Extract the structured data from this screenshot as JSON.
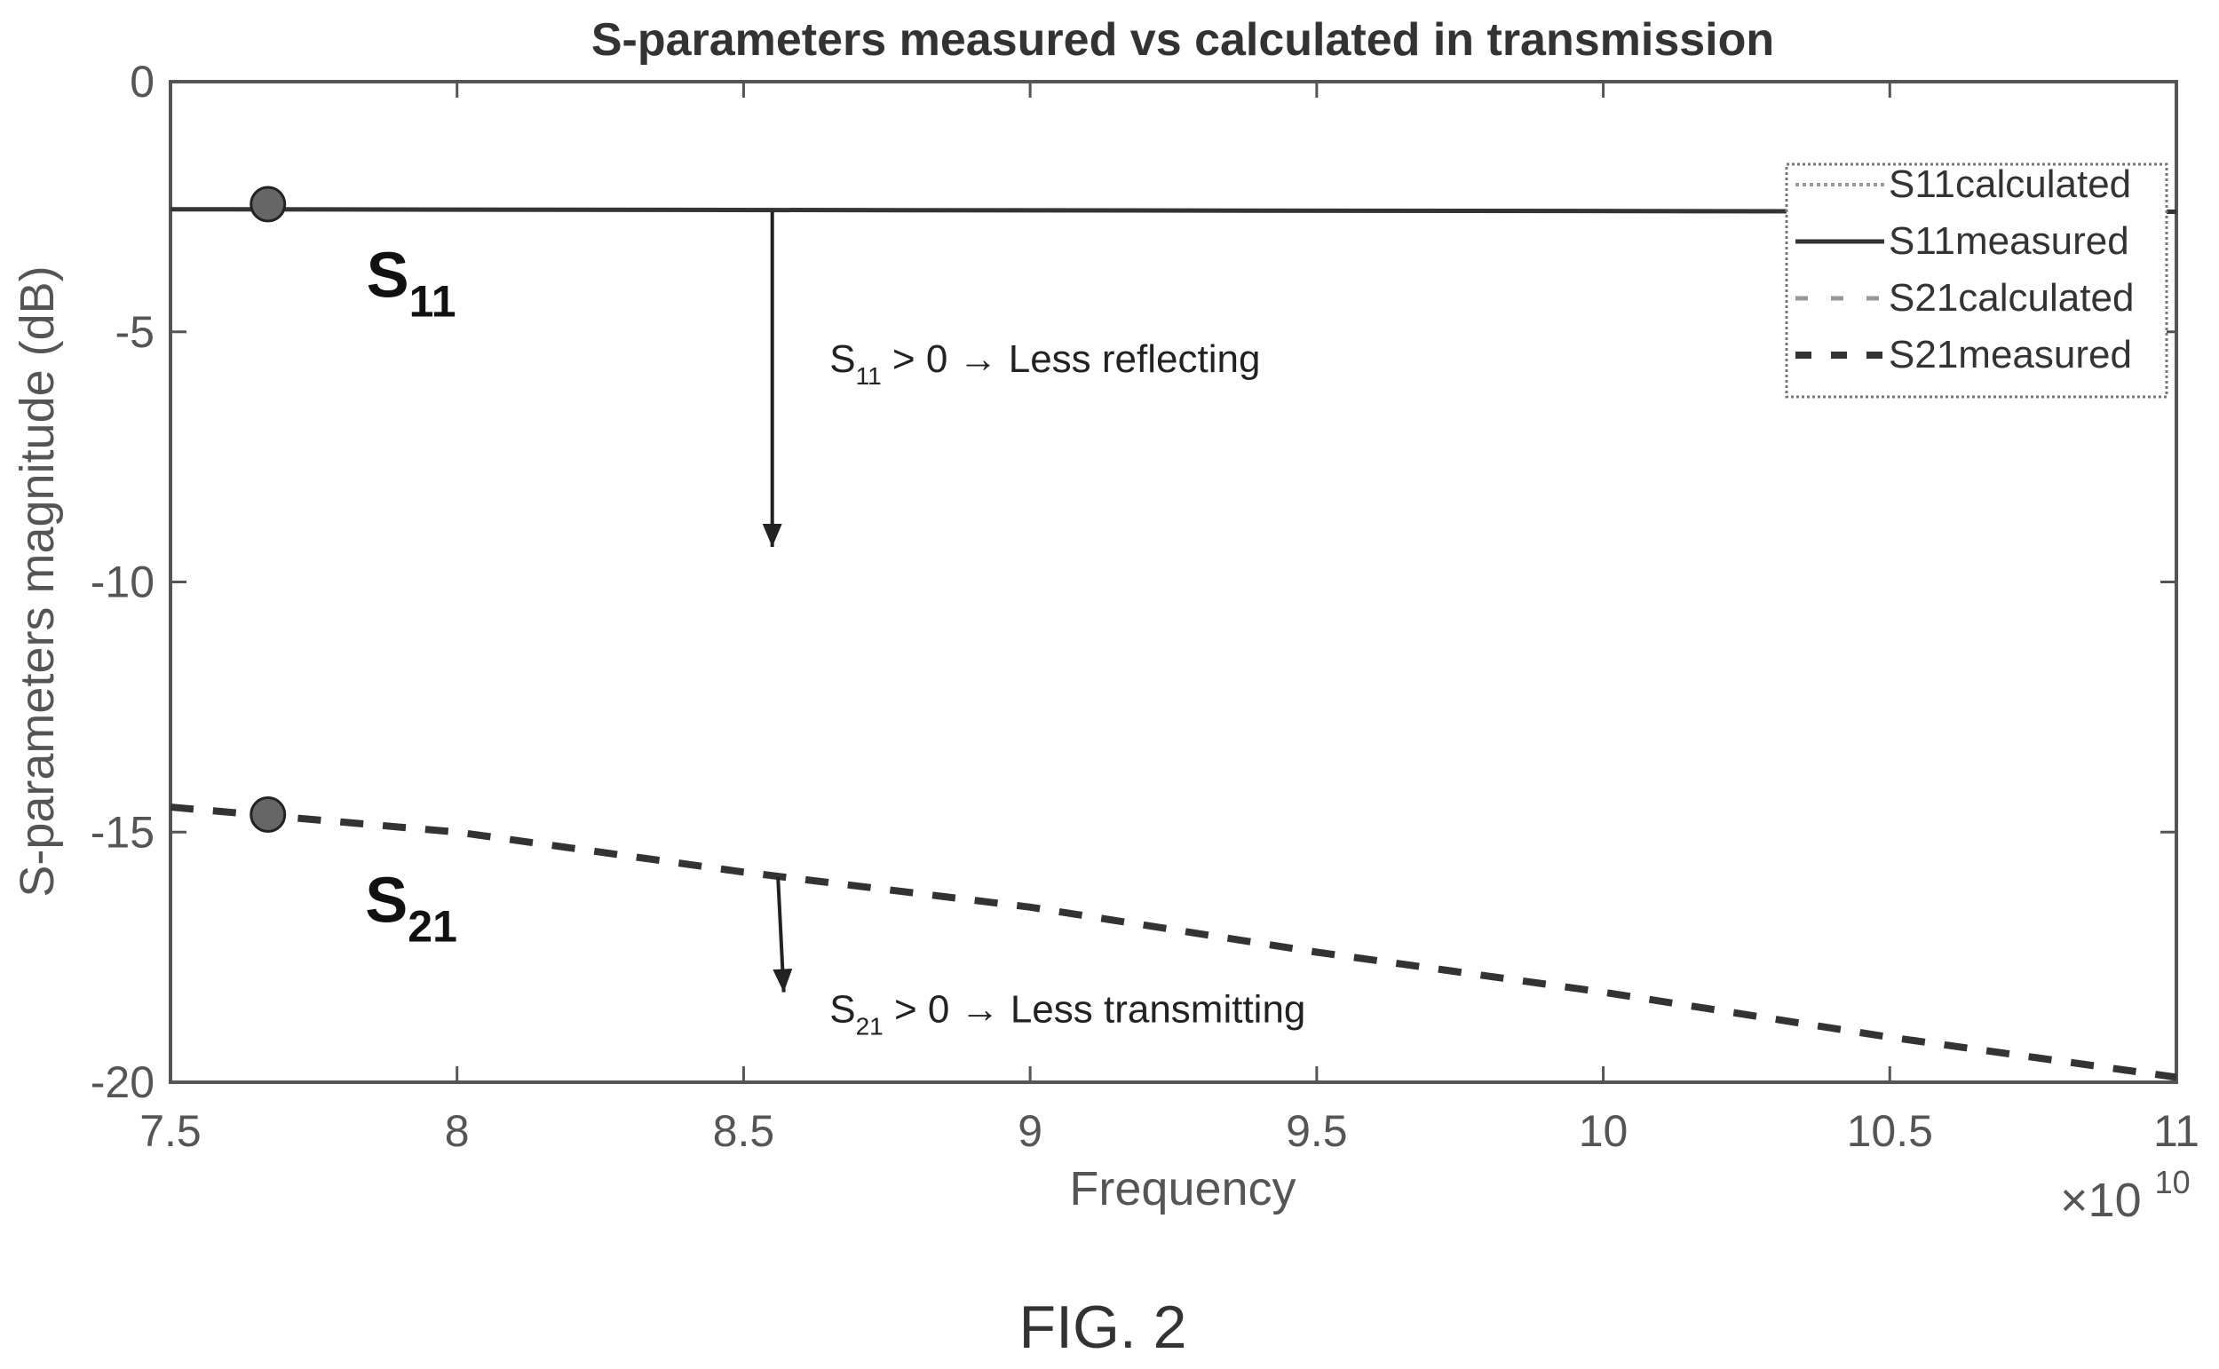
{
  "chart_data": {
    "type": "line",
    "title": "S-parameters measured vs calculated in transmission",
    "xlabel": "Frequency",
    "ylabel": "S-parameters magnitude (dB)",
    "x_exponent_label": "×10",
    "x_exponent_power": "10",
    "xlim": [
      75000000000.0,
      110000000000.0
    ],
    "ylim": [
      -20,
      0
    ],
    "x_ticks": [
      75000000000.0,
      80000000000.0,
      85000000000.0,
      90000000000.0,
      95000000000.0,
      100000000000.0,
      105000000000.0,
      110000000000.0
    ],
    "x_tick_labels": [
      "7.5",
      "8",
      "8.5",
      "9",
      "9.5",
      "10",
      "10.5",
      "11"
    ],
    "y_ticks": [
      0,
      -5,
      -10,
      -15,
      -20
    ],
    "y_tick_labels": [
      "0",
      "-5",
      "-10",
      "-15",
      "-20"
    ],
    "grid": false,
    "legend_position": "top-right",
    "series": [
      {
        "name": "S11calculated",
        "style": "dotted",
        "color": "#999999",
        "x": [
          75000000000.0,
          110000000000.0
        ],
        "y": [
          -2.55,
          -2.6
        ]
      },
      {
        "name": "S11measured",
        "style": "solid",
        "color": "#333333",
        "x": [
          75000000000.0,
          110000000000.0
        ],
        "y": [
          -2.55,
          -2.6
        ]
      },
      {
        "name": "S21calculated",
        "style": "dash-light",
        "color": "#999999",
        "x": [
          75000000000.0,
          80000000000.0,
          85000000000.0,
          90000000000.0,
          95000000000.0,
          100000000000.0,
          105000000000.0,
          110000000000.0
        ],
        "y": [
          -14.5,
          -15.0,
          -15.8,
          -16.5,
          -17.4,
          -18.2,
          -19.1,
          -19.9
        ]
      },
      {
        "name": "S21measured",
        "style": "dashed",
        "color": "#333333",
        "x": [
          75000000000.0,
          80000000000.0,
          85000000000.0,
          90000000000.0,
          95000000000.0,
          100000000000.0,
          105000000000.0,
          110000000000.0
        ],
        "y": [
          -14.5,
          -15.0,
          -15.8,
          -16.5,
          -17.4,
          -18.2,
          -19.1,
          -19.9
        ]
      }
    ],
    "markers": [
      {
        "x": 76700000000.0,
        "y": -2.45,
        "name": "S11-marker"
      },
      {
        "x": 76700000000.0,
        "y": -14.65,
        "name": "S21-marker"
      }
    ],
    "curve_labels": [
      {
        "main": "S",
        "sub": "11",
        "x": 79200000000.0,
        "y": -4.3
      },
      {
        "main": "S",
        "sub": "21",
        "x": 79200000000.0,
        "y": -16.8
      }
    ],
    "arrows": [
      {
        "x1": 85500000000.0,
        "y1": -2.6,
        "x2": 85500000000.0,
        "y2": -9.3
      },
      {
        "x1": 85600000000.0,
        "y1": -15.9,
        "x2": 85700000000.0,
        "y2": -18.2
      }
    ],
    "annotations": [
      {
        "s": "S",
        "sub": "11",
        "rest": " > 0 → Less reflecting",
        "x": 86500000000.0,
        "y": -5.8
      },
      {
        "s": "S",
        "sub": "21",
        "rest": " > 0 → Less transmitting",
        "x": 86500000000.0,
        "y": -18.8
      }
    ]
  },
  "figure_label": "FIG. 2"
}
